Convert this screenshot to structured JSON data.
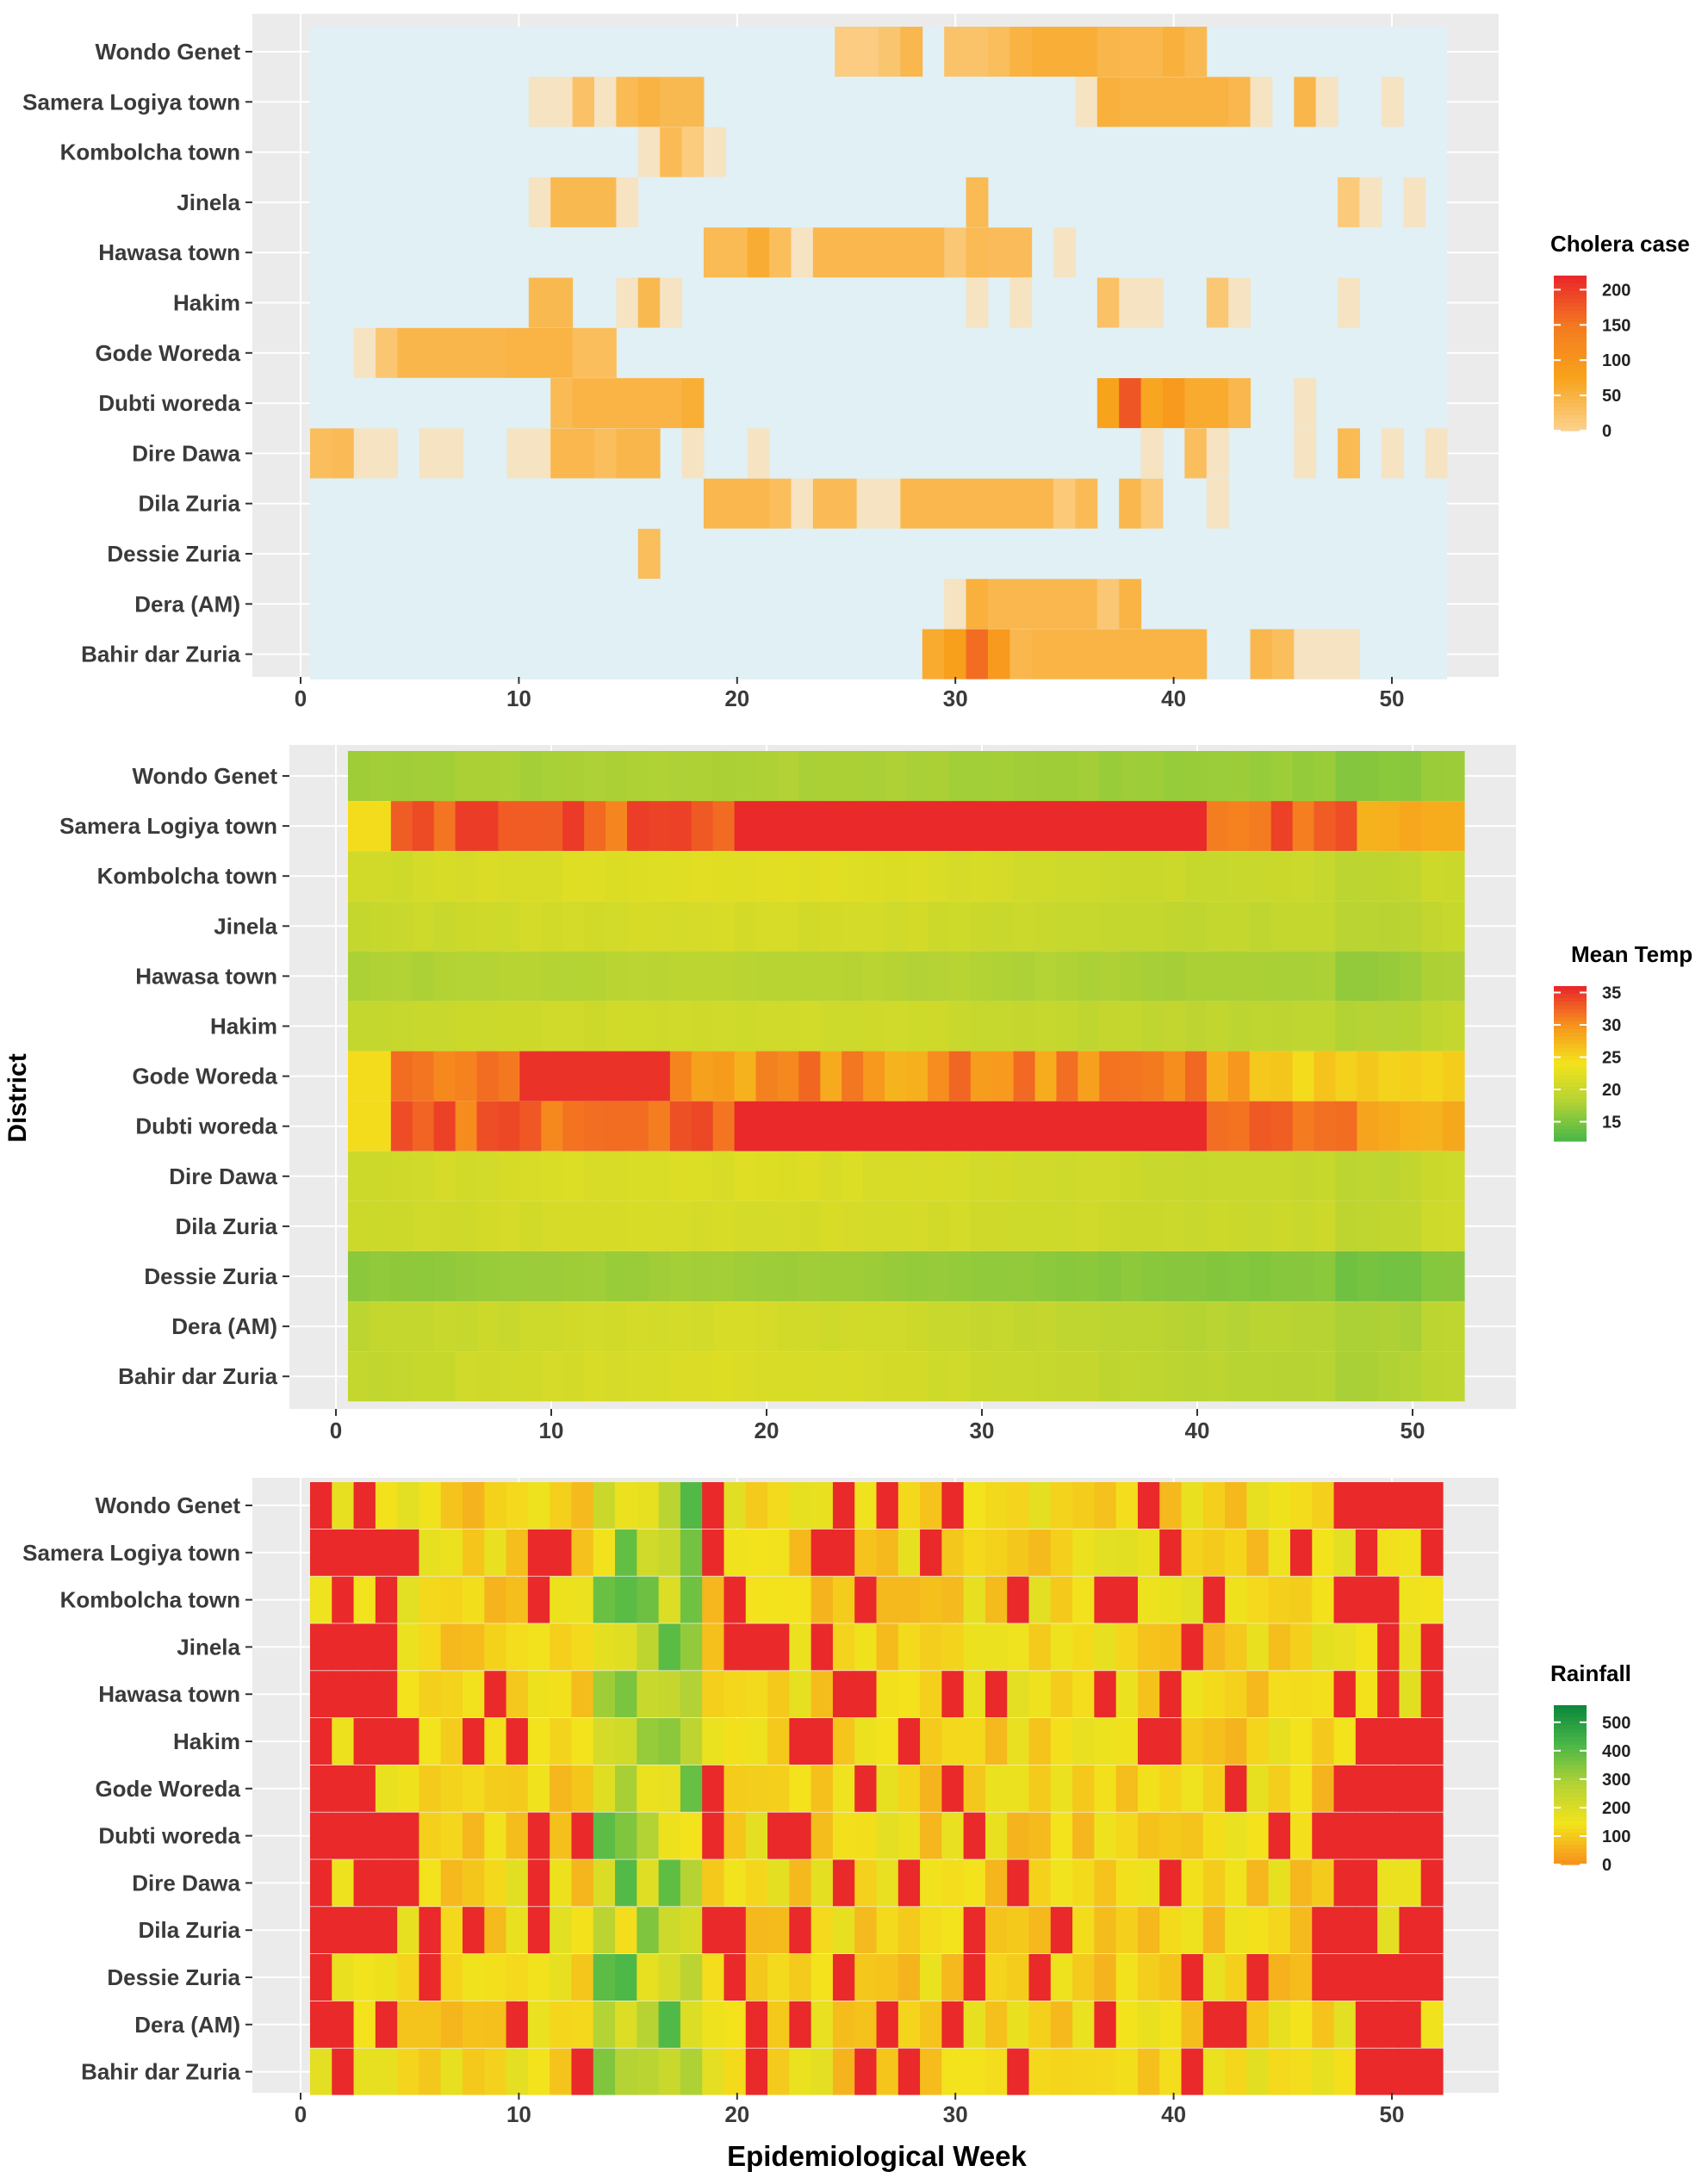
{
  "chart_data": [
    {
      "type": "heatmap",
      "panel": "cholera",
      "x": {
        "label": "",
        "range": [
          0,
          52
        ],
        "ticks": [
          0,
          10,
          20,
          30,
          40,
          50
        ]
      },
      "y": {
        "label": "District",
        "categories": [
          "Wondo Genet",
          "Samera Logiya town",
          "Kombolcha town",
          "Jinela",
          "Hawasa town",
          "Hakim",
          "Gode Woreda",
          "Dubti woreda",
          "Dire Dawa",
          "Dila Zuria",
          "Dessie Zuria",
          "Dera (AM)",
          "Bahir dar Zuria"
        ]
      },
      "legend": {
        "title": "Cholera case",
        "ticks": [
          200,
          150,
          100,
          50,
          0
        ],
        "range": [
          0,
          220
        ],
        "colors": [
          "#fbd08a",
          "#f8a31c",
          "#f47c20",
          "#e9292a"
        ]
      },
      "weeks_range": [
        1,
        52
      ],
      "background": "#e0f0f5",
      "cases": [
        {
          "district": "Wondo Genet",
          "segments": [
            [
              25,
              26,
              6
            ],
            [
              27,
              27,
              18
            ],
            [
              28,
              28,
              40
            ],
            [
              30,
              31,
              22
            ],
            [
              32,
              32,
              30
            ],
            [
              33,
              33,
              48
            ],
            [
              34,
              36,
              55
            ],
            [
              37,
              37,
              42
            ],
            [
              38,
              39,
              40
            ],
            [
              40,
              40,
              52
            ],
            [
              41,
              41,
              38
            ]
          ]
        },
        {
          "district": "Samera Logiya town",
          "segments": [
            [
              11,
              11,
              3
            ],
            [
              12,
              12,
              1
            ],
            [
              13,
              13,
              24
            ],
            [
              14,
              14,
              5
            ],
            [
              15,
              15,
              36
            ],
            [
              16,
              16,
              48
            ],
            [
              17,
              18,
              38
            ],
            [
              36,
              36,
              4
            ],
            [
              37,
              37,
              52
            ],
            [
              38,
              42,
              48
            ],
            [
              43,
              43,
              40
            ],
            [
              44,
              44,
              1
            ],
            [
              46,
              46,
              42
            ],
            [
              47,
              47,
              2
            ],
            [
              50,
              50,
              1
            ]
          ]
        },
        {
          "district": "Kombolcha town",
          "segments": [
            [
              16,
              16,
              2
            ],
            [
              17,
              17,
              34
            ],
            [
              18,
              18,
              8
            ],
            [
              19,
              19,
              1
            ]
          ]
        },
        {
          "district": "Jinela",
          "segments": [
            [
              11,
              11,
              2
            ],
            [
              12,
              14,
              38
            ],
            [
              15,
              15,
              2
            ],
            [
              31,
              31,
              36
            ],
            [
              48,
              48,
              10
            ],
            [
              49,
              49,
              1
            ],
            [
              51,
              51,
              1
            ]
          ]
        },
        {
          "district": "Hawasa town",
          "segments": [
            [
              19,
              20,
              36
            ],
            [
              21,
              21,
              58
            ],
            [
              22,
              22,
              30
            ],
            [
              23,
              23,
              4
            ],
            [
              24,
              29,
              40
            ],
            [
              30,
              30,
              14
            ],
            [
              31,
              31,
              36
            ],
            [
              32,
              33,
              32
            ],
            [
              35,
              35,
              1
            ]
          ]
        },
        {
          "district": "Hakim",
          "segments": [
            [
              11,
              12,
              38
            ],
            [
              15,
              15,
              1
            ],
            [
              16,
              16,
              38
            ],
            [
              17,
              17,
              1
            ],
            [
              31,
              31,
              1
            ],
            [
              33,
              33,
              1
            ],
            [
              37,
              37,
              24
            ],
            [
              38,
              39,
              1
            ],
            [
              42,
              42,
              14
            ],
            [
              43,
              43,
              1
            ],
            [
              48,
              48,
              1
            ]
          ]
        },
        {
          "district": "Gode Woreda",
          "segments": [
            [
              3,
              3,
              1
            ],
            [
              4,
              4,
              16
            ],
            [
              5,
              9,
              42
            ],
            [
              10,
              12,
              46
            ],
            [
              13,
              14,
              30
            ]
          ]
        },
        {
          "district": "Dubti woreda",
          "segments": [
            [
              12,
              12,
              36
            ],
            [
              13,
              17,
              46
            ],
            [
              18,
              18,
              56
            ],
            [
              37,
              37,
              74
            ],
            [
              38,
              38,
              180
            ],
            [
              39,
              39,
              70
            ],
            [
              40,
              40,
              90
            ],
            [
              41,
              42,
              60
            ],
            [
              43,
              43,
              40
            ],
            [
              46,
              46,
              1
            ]
          ]
        },
        {
          "district": "Dire Dawa",
          "segments": [
            [
              1,
              1,
              30
            ],
            [
              2,
              2,
              34
            ],
            [
              3,
              4,
              1
            ],
            [
              6,
              7,
              1
            ],
            [
              10,
              10,
              4
            ],
            [
              11,
              11,
              1
            ],
            [
              12,
              13,
              40
            ],
            [
              14,
              14,
              30
            ],
            [
              15,
              16,
              42
            ],
            [
              18,
              18,
              1
            ],
            [
              21,
              21,
              1
            ],
            [
              39,
              39,
              1
            ],
            [
              41,
              41,
              30
            ],
            [
              42,
              42,
              1
            ],
            [
              46,
              46,
              1
            ],
            [
              48,
              48,
              36
            ],
            [
              50,
              50,
              1
            ],
            [
              52,
              52,
              1
            ]
          ]
        },
        {
          "district": "Dila Zuria",
          "segments": [
            [
              19,
              21,
              40
            ],
            [
              22,
              22,
              30
            ],
            [
              23,
              23,
              1
            ],
            [
              24,
              25,
              34
            ],
            [
              26,
              27,
              1
            ],
            [
              28,
              34,
              40
            ],
            [
              35,
              35,
              12
            ],
            [
              36,
              36,
              34
            ],
            [
              38,
              38,
              40
            ],
            [
              39,
              39,
              10
            ],
            [
              42,
              42,
              1
            ]
          ]
        },
        {
          "district": "Dessie Zuria",
          "segments": [
            [
              16,
              16,
              30
            ]
          ]
        },
        {
          "district": "Dera (AM)",
          "segments": [
            [
              30,
              30,
              1
            ],
            [
              31,
              31,
              52
            ],
            [
              32,
              36,
              40
            ],
            [
              37,
              37,
              14
            ],
            [
              38,
              38,
              46
            ]
          ]
        },
        {
          "district": "Bahir dar Zuria",
          "segments": [
            [
              29,
              29,
              60
            ],
            [
              30,
              30,
              80
            ],
            [
              31,
              31,
              160
            ],
            [
              32,
              32,
              90
            ],
            [
              33,
              33,
              40
            ],
            [
              34,
              41,
              46
            ],
            [
              44,
              44,
              40
            ],
            [
              45,
              45,
              30
            ],
            [
              46,
              48,
              1
            ]
          ]
        }
      ]
    },
    {
      "type": "heatmap",
      "panel": "temperature",
      "x": {
        "label": "",
        "range": [
          0,
          52
        ],
        "ticks": [
          0,
          10,
          20,
          30,
          40,
          50
        ]
      },
      "y": {
        "label": "District",
        "categories": [
          "Wondo Genet",
          "Samera Logiya town",
          "Kombolcha town",
          "Jinela",
          "Hawasa town",
          "Hakim",
          "Gode Woreda",
          "Dubti woreda",
          "Dire Dawa",
          "Dila Zuria",
          "Dessie Zuria",
          "Dera (AM)",
          "Bahir dar Zuria"
        ]
      },
      "legend": {
        "title": "Mean Temp",
        "ticks": [
          35,
          30,
          25,
          20,
          15
        ],
        "range": [
          12,
          36
        ],
        "colors": [
          "#4db848",
          "#b5d334",
          "#f3e31c",
          "#f7941d",
          "#e9292a"
        ]
      },
      "weeks_range": [
        1,
        52
      ],
      "profiles": [
        {
          "district": "Wondo Genet",
          "base": 17.0,
          "amp": 0.6
        },
        {
          "district": "Samera Logiya town",
          "base": 0,
          "amp": 0,
          "kind": "hot-north"
        },
        {
          "district": "Kombolcha town",
          "base": 21.0,
          "amp": 1.2
        },
        {
          "district": "Jinela",
          "base": 20.2,
          "amp": 1.0
        },
        {
          "district": "Hawasa town",
          "base": 17.8,
          "amp": 0.6
        },
        {
          "district": "Hakim",
          "base": 19.8,
          "amp": 0.9
        },
        {
          "district": "Gode Woreda",
          "base": 0,
          "amp": 0,
          "kind": "hot-east"
        },
        {
          "district": "Dubti woreda",
          "base": 0,
          "amp": 0,
          "kind": "hot-north"
        },
        {
          "district": "Dire Dawa",
          "base": 20.8,
          "amp": 1.0
        },
        {
          "district": "Dila Zuria",
          "base": 20.6,
          "amp": 0.6
        },
        {
          "district": "Dessie Zuria",
          "base": 16.0,
          "amp": 0.8
        },
        {
          "district": "Dera (AM)",
          "base": 19.6,
          "amp": 1.4
        },
        {
          "district": "Bahir dar Zuria",
          "base": 20.0,
          "amp": 1.6
        }
      ]
    },
    {
      "type": "heatmap",
      "panel": "rainfall",
      "x": {
        "label": "Epidemiological Week",
        "range": [
          0,
          52
        ],
        "ticks": [
          0,
          10,
          20,
          30,
          40,
          50
        ]
      },
      "y": {
        "label": "District",
        "categories": [
          "Wondo Genet",
          "Samera Logiya town",
          "Kombolcha town",
          "Jinela",
          "Hawasa town",
          "Hakim",
          "Gode Woreda",
          "Dubti woreda",
          "Dire Dawa",
          "Dila Zuria",
          "Dessie Zuria",
          "Dera (AM)",
          "Bahir dar Zuria"
        ]
      },
      "legend": {
        "title": "Rainfall",
        "ticks": [
          500,
          400,
          300,
          200,
          100,
          0
        ],
        "range": [
          0,
          560
        ],
        "colors": [
          "#f7941d",
          "#f3e31c",
          "#b5d334",
          "#4db848",
          "#0d8a3c"
        ]
      },
      "weeks_range": [
        1,
        52
      ],
      "wet_weeks": [
        14,
        15,
        16,
        17,
        18
      ],
      "dry_weeks": [
        1,
        2,
        3,
        4,
        11,
        48,
        49,
        50,
        51,
        52
      ]
    }
  ],
  "figure": {
    "x_axis_title": "Epidemiological Week",
    "y_axis_title": "District"
  }
}
